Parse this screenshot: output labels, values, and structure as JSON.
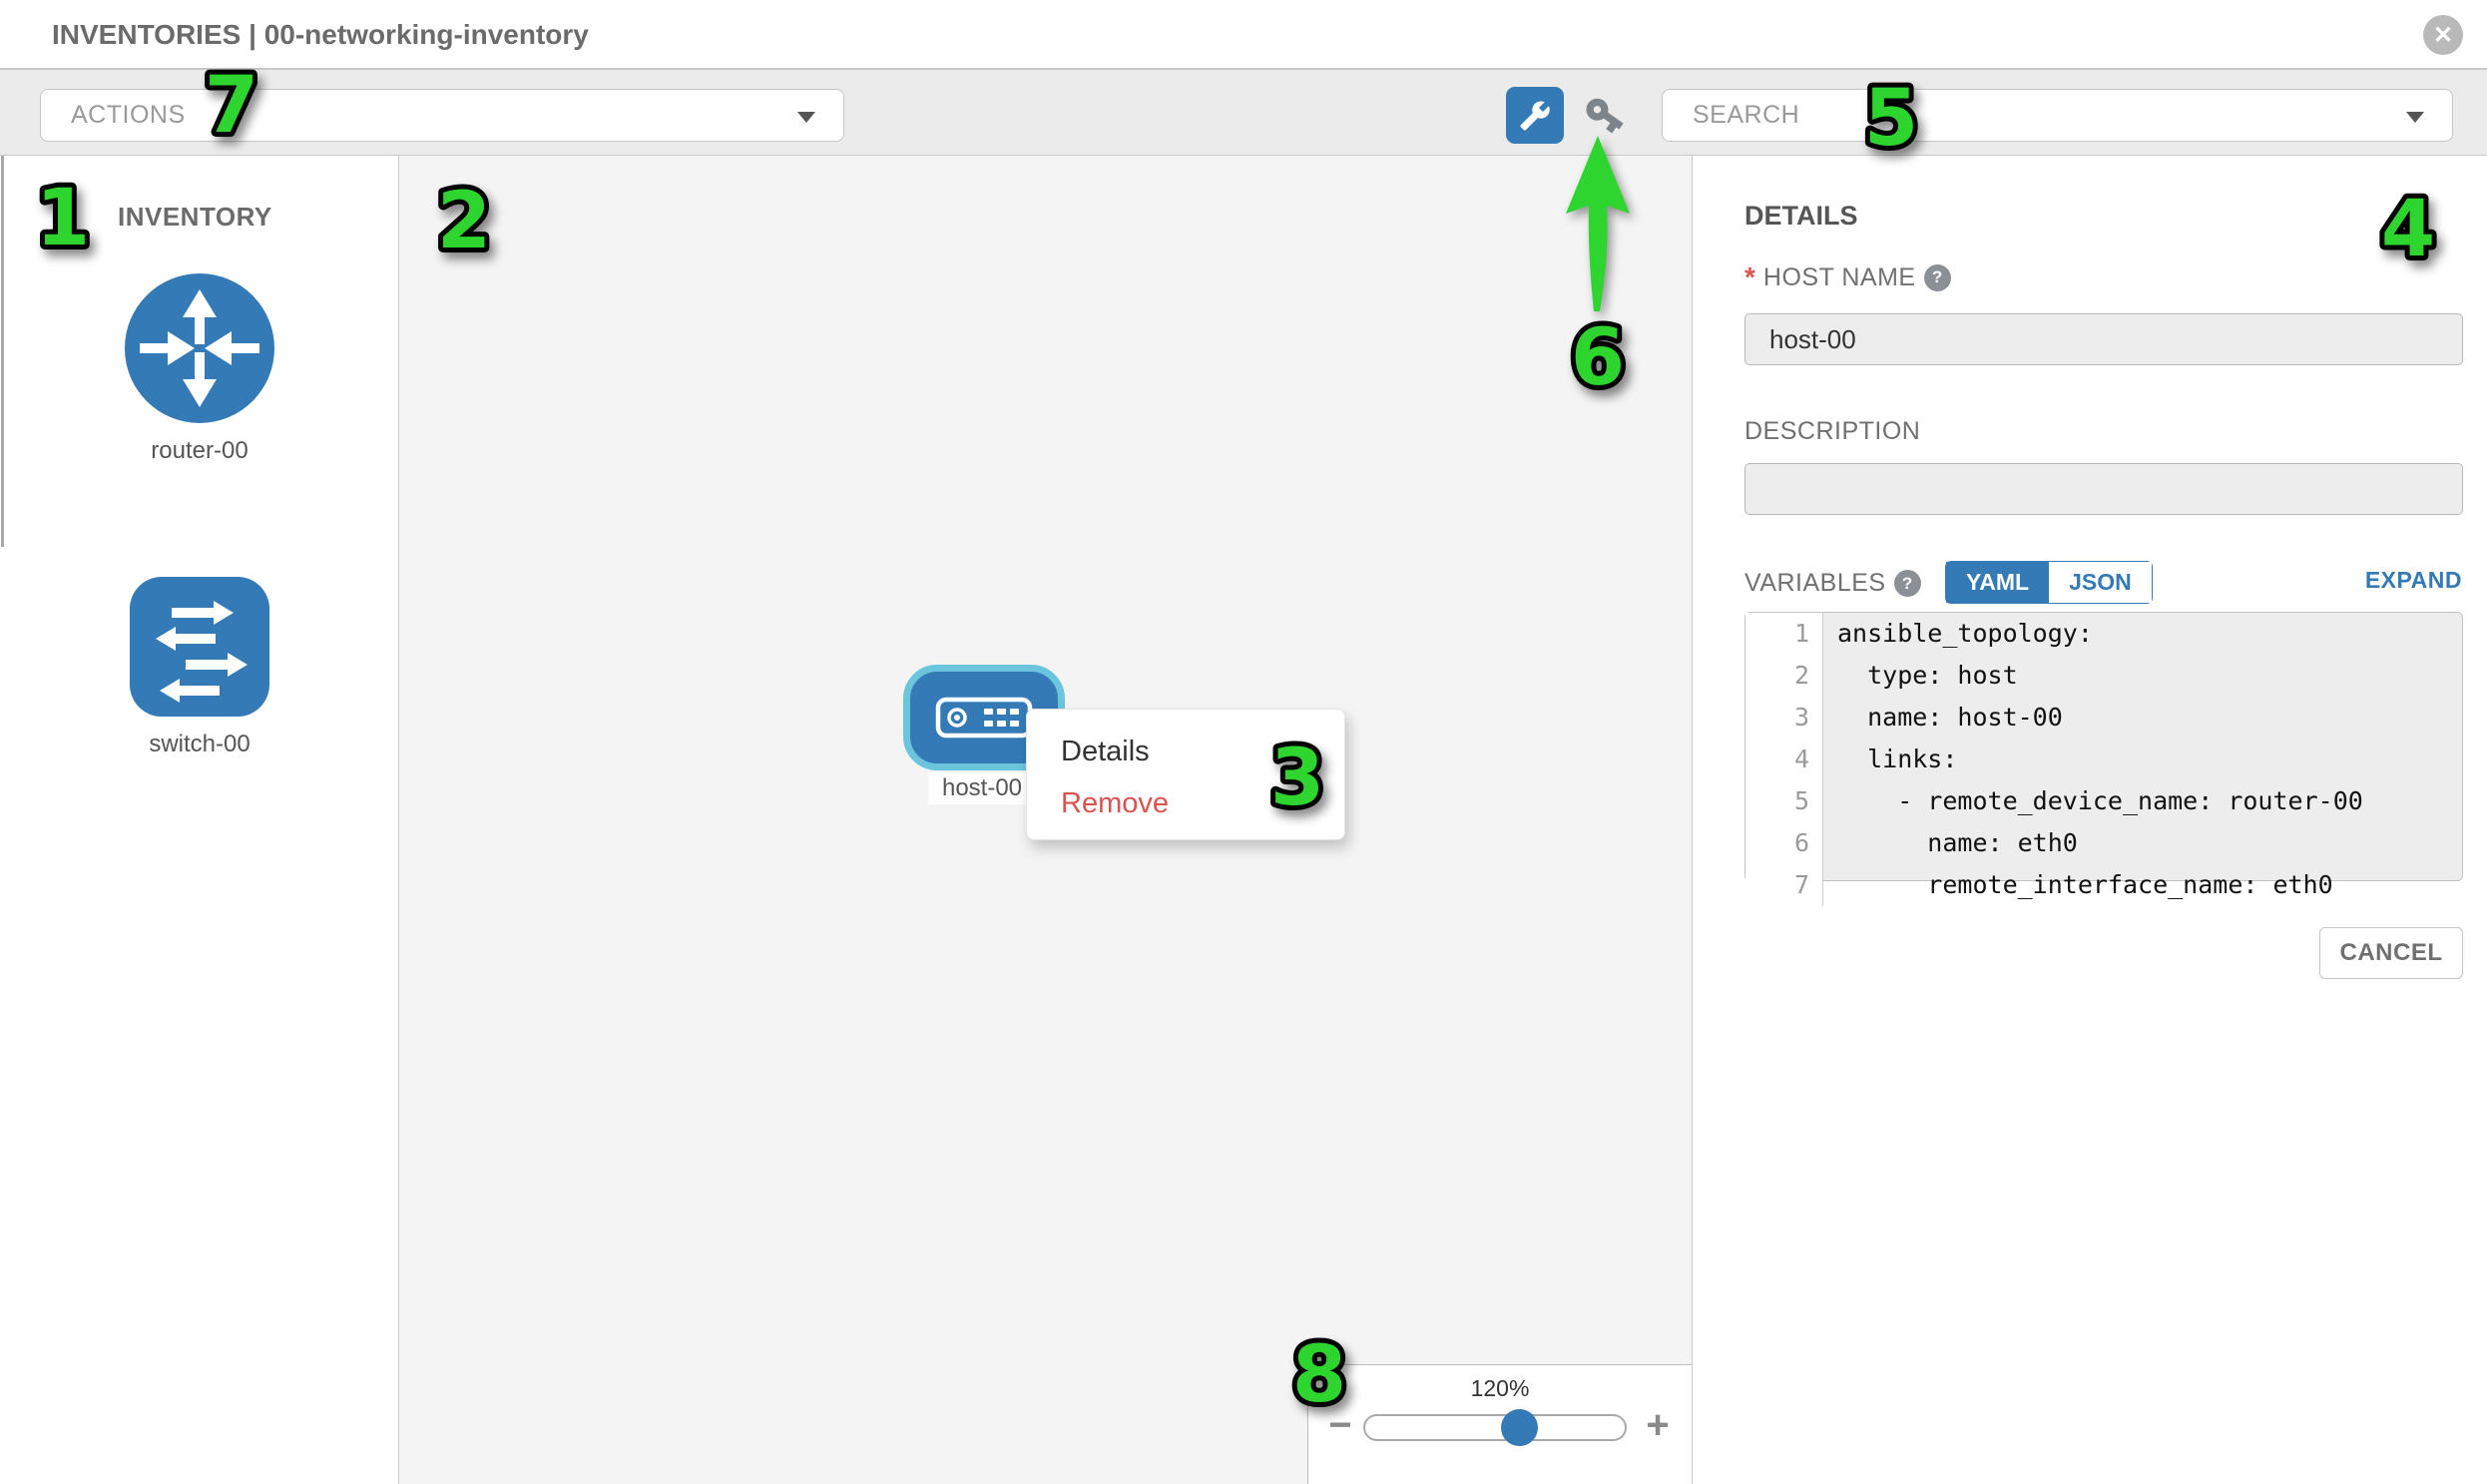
{
  "header": {
    "title": "INVENTORIES | 00-networking-inventory"
  },
  "toolbar": {
    "actions_label": "ACTIONS",
    "search_label": "SEARCH",
    "wrench_icon": "wrench-icon",
    "key_icon": "key-icon"
  },
  "sidebar": {
    "title": "INVENTORY",
    "items": [
      {
        "type": "router",
        "label": "router-00"
      },
      {
        "type": "switch",
        "label": "switch-00"
      }
    ]
  },
  "canvas": {
    "node": {
      "type": "host",
      "label": "host-00",
      "selected": true
    },
    "context_menu": {
      "items": [
        {
          "label": "Details"
        },
        {
          "label": "Remove"
        }
      ]
    },
    "zoom_control": {
      "value": "120%",
      "minus": "−",
      "plus": "+",
      "knob_percent": 60
    }
  },
  "details_panel": {
    "title": "DETAILS",
    "host_name": {
      "label": "HOST NAME",
      "required_marker": "*",
      "value": "host-00",
      "placeholder": ""
    },
    "description": {
      "label": "DESCRIPTION",
      "value": "",
      "placeholder": ""
    },
    "variables": {
      "label": "VARIABLES",
      "tabs": [
        "YAML",
        "JSON"
      ],
      "active_tab": "YAML",
      "expand_label": "EXPAND",
      "code_lines": [
        {
          "num": "1",
          "text": "ansible_topology:"
        },
        {
          "num": "2",
          "text": "  type: host"
        },
        {
          "num": "3",
          "text": "  name: host-00"
        },
        {
          "num": "4",
          "text": "  links:"
        },
        {
          "num": "5",
          "text": "    - remote_device_name: router-00"
        },
        {
          "num": "6",
          "text": "      name: eth0"
        },
        {
          "num": "7",
          "text": "      remote_interface_name: eth0"
        }
      ]
    },
    "cancel_label": "CANCEL"
  },
  "annotations": {
    "n1": "1",
    "n2": "2",
    "n3": "3",
    "n4": "4",
    "n5": "5",
    "n6": "6",
    "n7": "7",
    "n8": "8",
    "color": "#2ed52e"
  },
  "colors": {
    "accent_blue": "#337ab7",
    "selection_teal": "#6ac5dd",
    "remove_red": "#d9534f",
    "canvas_gray": "#f4f4f4",
    "toolbar_gray": "#ebebeb"
  }
}
